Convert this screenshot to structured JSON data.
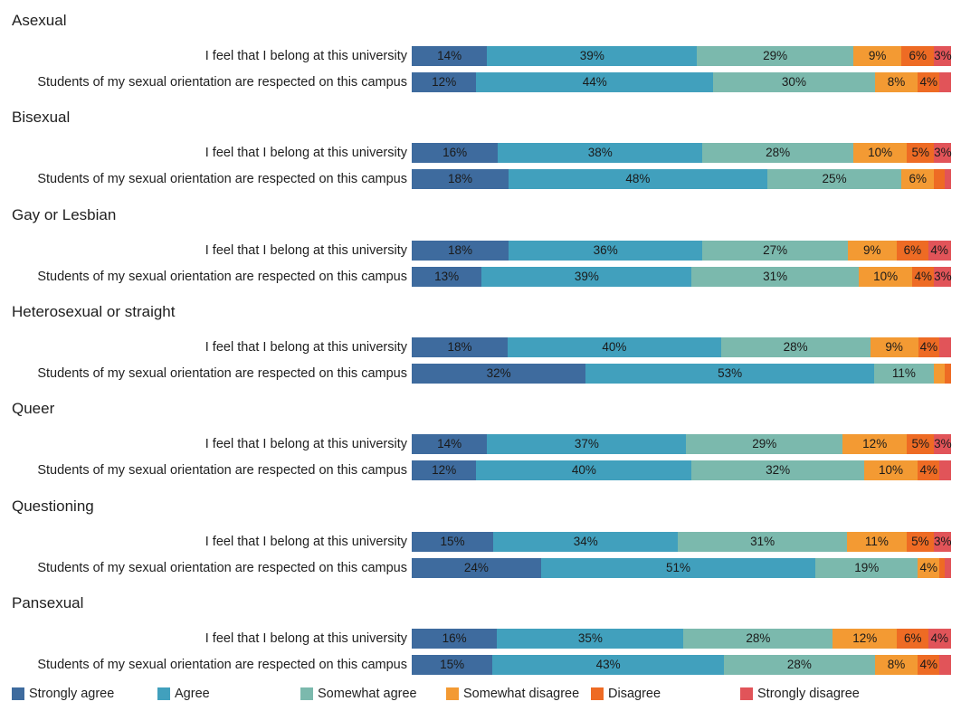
{
  "chart_data": {
    "type": "bar",
    "orientation": "horizontal-stacked-100",
    "title": "",
    "xlabel": "",
    "ylabel": "",
    "xlim": [
      0,
      100
    ],
    "grid": false,
    "legend_position": "bottom",
    "legend": [
      {
        "name": "Strongly agree",
        "color": "#3e6b9e"
      },
      {
        "name": "Agree",
        "color": "#41a0bd"
      },
      {
        "name": "Somewhat agree",
        "color": "#7bb9ad"
      },
      {
        "name": "Somewhat disagree",
        "color": "#f39a33"
      },
      {
        "name": "Disagree",
        "color": "#ee6b24"
      },
      {
        "name": "Strongly disagree",
        "color": "#e15459"
      }
    ],
    "groups": [
      {
        "name": "Asexual",
        "rows": [
          {
            "label": "I feel that I belong at this university",
            "values": [
              14,
              39,
              29,
              9,
              6,
              3
            ]
          },
          {
            "label": "Students of my sexual orientation are respected on this campus",
            "values": [
              12,
              44,
              30,
              8,
              4,
              2
            ]
          }
        ]
      },
      {
        "name": "Bisexual",
        "rows": [
          {
            "label": "I feel that I belong at this university",
            "values": [
              16,
              38,
              28,
              10,
              5,
              3
            ]
          },
          {
            "label": "Students of my sexual orientation are respected on this campus",
            "values": [
              18,
              48,
              25,
              6,
              2,
              1
            ]
          }
        ]
      },
      {
        "name": "Gay or Lesbian",
        "rows": [
          {
            "label": "I feel that I belong at this university",
            "values": [
              18,
              36,
              27,
              9,
              6,
              4
            ]
          },
          {
            "label": "Students of my sexual orientation are respected on this campus",
            "values": [
              13,
              39,
              31,
              10,
              4,
              3
            ]
          }
        ]
      },
      {
        "name": "Heterosexual or straight",
        "rows": [
          {
            "label": "I feel that I belong at this university",
            "values": [
              18,
              40,
              28,
              9,
              4,
              2
            ]
          },
          {
            "label": "Students of my sexual orientation are respected on this campus",
            "values": [
              32,
              53,
              11,
              2,
              1,
              0
            ]
          }
        ]
      },
      {
        "name": "Queer",
        "rows": [
          {
            "label": "I feel that I belong at this university",
            "values": [
              14,
              37,
              29,
              12,
              5,
              3
            ]
          },
          {
            "label": "Students of my sexual orientation are respected on this campus",
            "values": [
              12,
              40,
              32,
              10,
              4,
              2
            ]
          }
        ]
      },
      {
        "name": "Questioning",
        "rows": [
          {
            "label": "I feel that I belong at this university",
            "values": [
              15,
              34,
              31,
              11,
              5,
              3
            ]
          },
          {
            "label": "Students of my sexual orientation are respected on this campus",
            "values": [
              24,
              51,
              19,
              4,
              1,
              1
            ]
          }
        ]
      },
      {
        "name": "Pansexual",
        "rows": [
          {
            "label": "I feel that I belong at this university",
            "values": [
              16,
              35,
              28,
              12,
              6,
              4
            ]
          },
          {
            "label": "Students of my sexual orientation are respected on this campus",
            "values": [
              15,
              43,
              28,
              8,
              4,
              2
            ]
          }
        ]
      }
    ]
  }
}
